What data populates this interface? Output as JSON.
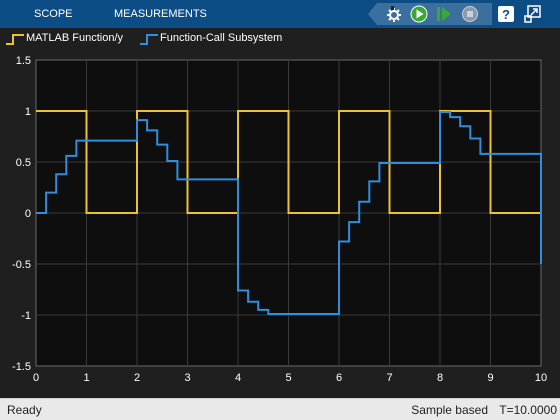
{
  "toolbar": {
    "tabs": [
      {
        "label": "SCOPE"
      },
      {
        "label": "MEASUREMENTS"
      }
    ],
    "icons": [
      "settings-icon",
      "run-icon",
      "step-forward-icon",
      "stop-icon",
      "help-icon",
      "undock-icon"
    ]
  },
  "legend": {
    "items": [
      {
        "label": "MATLAB Function/y",
        "color": "#edc232"
      },
      {
        "label": "Function-Call Subsystem",
        "color": "#2f8ede"
      }
    ]
  },
  "status": {
    "left": "Ready",
    "mode": "Sample based",
    "time": "T=10.0000"
  },
  "chart_data": {
    "type": "line",
    "xlim": [
      0,
      10
    ],
    "ylim": [
      -1.5,
      1.5
    ],
    "xticks": [
      "0",
      "1",
      "2",
      "3",
      "4",
      "5",
      "6",
      "7",
      "8",
      "9",
      "10"
    ],
    "yticks": [
      "1.5",
      "1",
      "0.5",
      "0",
      "-0.5",
      "-1",
      "-1.5"
    ],
    "grid": true,
    "series": [
      {
        "name": "MATLAB Function/y",
        "color": "#edc232",
        "step": true,
        "x": [
          0,
          1,
          2,
          3,
          4,
          5,
          6,
          7,
          8,
          9,
          10
        ],
        "y": [
          1,
          0,
          1,
          0,
          1,
          0,
          1,
          0,
          1,
          0,
          0
        ]
      },
      {
        "name": "Function-Call Subsystem",
        "color": "#2f8ede",
        "step": true,
        "x": [
          0,
          0.2,
          0.4,
          0.6,
          0.8,
          1.0,
          2.0,
          2.2,
          2.4,
          2.6,
          2.8,
          4.0,
          4.2,
          4.4,
          4.6,
          6.0,
          6.2,
          6.4,
          6.6,
          6.8,
          8.0,
          8.2,
          8.4,
          8.6,
          8.8,
          10.0
        ],
        "y": [
          0,
          0.2,
          0.38,
          0.56,
          0.71,
          0.71,
          0.91,
          0.81,
          0.67,
          0.51,
          0.33,
          -0.76,
          -0.87,
          -0.95,
          -0.99,
          -0.28,
          -0.09,
          0.11,
          0.31,
          0.49,
          0.99,
          0.94,
          0.85,
          0.73,
          0.58,
          -0.5
        ]
      }
    ]
  }
}
